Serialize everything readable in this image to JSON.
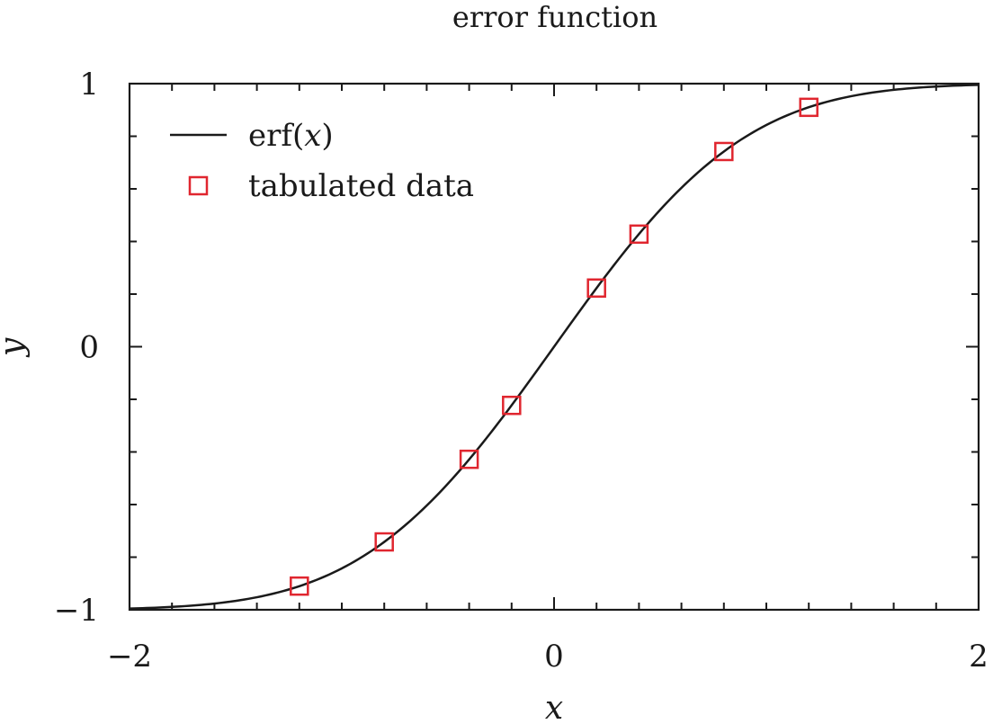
{
  "chart_data": {
    "type": "line",
    "title": "error function",
    "xlabel": "x",
    "ylabel": "y",
    "xlim": [
      -2,
      2
    ],
    "ylim": [
      -1,
      1
    ],
    "x_ticks": [
      {
        "value": -2,
        "label": "−2"
      },
      {
        "value": 0,
        "label": "0"
      },
      {
        "value": 2,
        "label": "2"
      }
    ],
    "y_ticks": [
      {
        "value": -1,
        "label": "−1"
      },
      {
        "value": 0,
        "label": "0"
      },
      {
        "value": 1,
        "label": "1"
      }
    ],
    "x_minor_step": 0.2,
    "y_minor_step": 0.2,
    "grid": false,
    "legend_position": "top-left",
    "series": [
      {
        "name": "erf(x)",
        "kind": "line",
        "color": "#1a1a1a",
        "function": "erf",
        "x_range": [
          -2,
          2
        ]
      },
      {
        "name": "tabulated data",
        "kind": "markers",
        "marker": "square",
        "color": "#e0262f",
        "x": [
          -1.2,
          -0.8,
          -0.4,
          -0.2,
          0.2,
          0.4,
          0.8,
          1.2
        ],
        "y": [
          -0.91,
          -0.742,
          -0.428,
          -0.223,
          0.223,
          0.428,
          0.742,
          0.91
        ]
      }
    ],
    "legend": [
      {
        "label_text": "erf(",
        "label_var": "x",
        "label_close": ")"
      },
      {
        "label_text": "tabulated data"
      }
    ]
  }
}
